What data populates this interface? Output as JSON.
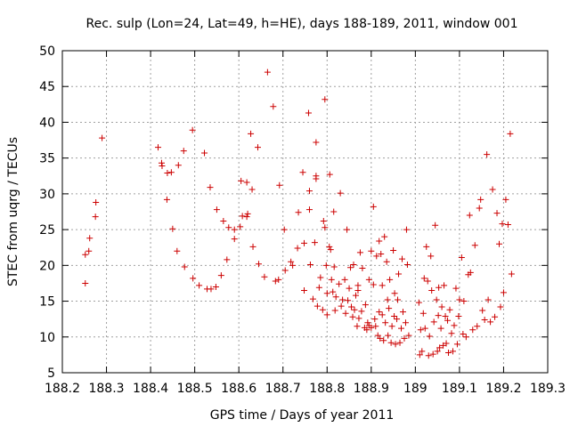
{
  "chart_data": {
    "type": "scatter",
    "title": "Rec. sulp (Lon=24, Lat=49, h=HE), days 188-189, 2011, window 001",
    "xlabel": "GPS time / Days of year 2011",
    "ylabel": "STEC from uqrg / TECUs",
    "xlim": [
      188.2,
      189.3
    ],
    "ylim": [
      5,
      50
    ],
    "xticks": [
      "188.2",
      "188.3",
      "188.4",
      "188.5",
      "188.6",
      "188.7",
      "188.8",
      "188.9",
      "189",
      "189.1",
      "189.2",
      "189.3"
    ],
    "yticks": [
      "5",
      "10",
      "15",
      "20",
      "25",
      "30",
      "35",
      "40",
      "45",
      "50"
    ],
    "grid": true,
    "marker": "+",
    "color": "#cc0000",
    "series": [
      {
        "points": [
          [
            188.252,
            17.5
          ],
          [
            188.252,
            21.5
          ],
          [
            188.26,
            22.0
          ],
          [
            188.262,
            23.8
          ],
          [
            188.275,
            26.8
          ],
          [
            188.276,
            28.8
          ],
          [
            188.29,
            37.8
          ],
          [
            188.417,
            36.5
          ],
          [
            188.425,
            34.3
          ],
          [
            188.426,
            33.9
          ],
          [
            188.437,
            29.2
          ],
          [
            188.438,
            32.9
          ],
          [
            188.447,
            33.0
          ],
          [
            188.45,
            25.1
          ],
          [
            188.46,
            22.0
          ],
          [
            188.463,
            34.0
          ],
          [
            188.475,
            36.0
          ],
          [
            188.477,
            19.8
          ],
          [
            188.495,
            38.9
          ],
          [
            188.496,
            18.2
          ],
          [
            188.51,
            17.2
          ],
          [
            188.522,
            35.7
          ],
          [
            188.528,
            16.7
          ],
          [
            188.535,
            30.9
          ],
          [
            188.537,
            16.7
          ],
          [
            188.548,
            17.0
          ],
          [
            188.55,
            27.8
          ],
          [
            188.56,
            18.6
          ],
          [
            188.565,
            26.2
          ],
          [
            188.573,
            20.8
          ],
          [
            188.577,
            25.3
          ],
          [
            188.59,
            23.7
          ],
          [
            188.59,
            25.0
          ],
          [
            188.603,
            25.4
          ],
          [
            188.605,
            31.8
          ],
          [
            188.608,
            26.9
          ],
          [
            188.618,
            26.8
          ],
          [
            188.618,
            31.6
          ],
          [
            188.62,
            27.2
          ],
          [
            188.627,
            38.4
          ],
          [
            188.63,
            30.6
          ],
          [
            188.632,
            22.6
          ],
          [
            188.643,
            36.5
          ],
          [
            188.645,
            20.2
          ],
          [
            188.658,
            18.4
          ],
          [
            188.665,
            47.0
          ],
          [
            188.678,
            42.2
          ],
          [
            188.683,
            17.8
          ],
          [
            188.692,
            31.2
          ],
          [
            188.69,
            18.0
          ],
          [
            188.703,
            25.0
          ],
          [
            188.705,
            19.3
          ],
          [
            188.718,
            20.5
          ],
          [
            188.722,
            20.0
          ],
          [
            188.735,
            27.4
          ],
          [
            188.733,
            22.4
          ],
          [
            188.745,
            33.0
          ],
          [
            188.748,
            16.5
          ],
          [
            188.748,
            23.1
          ],
          [
            188.758,
            41.3
          ],
          [
            188.76,
            27.8
          ],
          [
            188.76,
            30.4
          ],
          [
            188.762,
            20.1
          ],
          [
            188.768,
            15.3
          ],
          [
            188.772,
            23.2
          ],
          [
            188.775,
            32.5
          ],
          [
            188.775,
            32.1
          ],
          [
            188.775,
            37.2
          ],
          [
            188.778,
            14.3
          ],
          [
            188.782,
            16.9
          ],
          [
            188.785,
            18.3
          ],
          [
            188.79,
            13.8
          ],
          [
            188.792,
            26.2
          ],
          [
            188.795,
            25.3
          ],
          [
            188.795,
            43.2
          ],
          [
            188.798,
            20.0
          ],
          [
            188.8,
            13.1
          ],
          [
            188.8,
            16.1
          ],
          [
            188.805,
            22.6
          ],
          [
            188.806,
            32.7
          ],
          [
            188.808,
            22.2
          ],
          [
            188.81,
            18.0
          ],
          [
            188.813,
            16.3
          ],
          [
            188.816,
            19.8
          ],
          [
            188.815,
            27.5
          ],
          [
            188.818,
            13.7
          ],
          [
            188.82,
            15.6
          ],
          [
            188.827,
            17.4
          ],
          [
            188.83,
            30.1
          ],
          [
            188.832,
            14.3
          ],
          [
            188.835,
            15.2
          ],
          [
            188.84,
            18.0
          ],
          [
            188.842,
            13.3
          ],
          [
            188.845,
            25.0
          ],
          [
            188.847,
            15.1
          ],
          [
            188.85,
            16.8
          ],
          [
            188.853,
            19.7
          ],
          [
            188.855,
            14.2
          ],
          [
            188.858,
            12.8
          ],
          [
            188.86,
            20.1
          ],
          [
            188.862,
            13.8
          ],
          [
            188.865,
            15.8
          ],
          [
            188.868,
            11.5
          ],
          [
            188.87,
            17.2
          ],
          [
            188.87,
            16.5
          ],
          [
            188.872,
            12.6
          ],
          [
            188.875,
            21.8
          ],
          [
            188.878,
            13.6
          ],
          [
            188.88,
            19.6
          ],
          [
            188.885,
            11.3
          ],
          [
            188.887,
            14.5
          ],
          [
            188.89,
            11.0
          ],
          [
            188.892,
            12.0
          ],
          [
            188.895,
            18.0
          ],
          [
            188.895,
            11.6
          ],
          [
            188.9,
            11.3
          ],
          [
            188.9,
            22.0
          ],
          [
            188.905,
            28.2
          ],
          [
            188.905,
            17.3
          ],
          [
            188.908,
            12.5
          ],
          [
            188.91,
            11.5
          ],
          [
            188.912,
            21.3
          ],
          [
            188.915,
            10.2
          ],
          [
            188.918,
            23.4
          ],
          [
            188.918,
            13.5
          ],
          [
            188.92,
            9.8
          ],
          [
            188.922,
            21.6
          ],
          [
            188.925,
            13.1
          ],
          [
            188.925,
            17.2
          ],
          [
            188.928,
            9.5
          ],
          [
            188.93,
            24.0
          ],
          [
            188.932,
            12.0
          ],
          [
            188.935,
            20.5
          ],
          [
            188.937,
            15.2
          ],
          [
            188.938,
            10.2
          ],
          [
            188.94,
            14.0
          ],
          [
            188.942,
            18.0
          ],
          [
            188.945,
            9.2
          ],
          [
            188.947,
            11.5
          ],
          [
            188.95,
            22.1
          ],
          [
            188.952,
            12.9
          ],
          [
            188.953,
            16.1
          ],
          [
            188.955,
            9.0
          ],
          [
            188.958,
            12.5
          ],
          [
            188.96,
            15.2
          ],
          [
            188.962,
            18.8
          ],
          [
            188.965,
            9.2
          ],
          [
            188.968,
            11.2
          ],
          [
            188.97,
            20.9
          ],
          [
            188.972,
            13.5
          ],
          [
            188.975,
            9.8
          ],
          [
            188.978,
            12.0
          ],
          [
            188.98,
            25.0
          ],
          [
            188.982,
            20.1
          ],
          [
            188.985,
            10.2
          ],
          [
            189.008,
            14.8
          ],
          [
            189.01,
            7.5
          ],
          [
            189.012,
            11.0
          ],
          [
            189.015,
            8.0
          ],
          [
            189.018,
            13.3
          ],
          [
            189.02,
            18.2
          ],
          [
            189.022,
            11.2
          ],
          [
            189.025,
            22.6
          ],
          [
            189.028,
            17.8
          ],
          [
            189.03,
            7.4
          ],
          [
            189.032,
            10.1
          ],
          [
            189.035,
            21.3
          ],
          [
            189.037,
            16.5
          ],
          [
            189.04,
            7.6
          ],
          [
            189.042,
            12.1
          ],
          [
            189.045,
            25.6
          ],
          [
            189.048,
            15.2
          ],
          [
            189.05,
            8.0
          ],
          [
            189.052,
            13.0
          ],
          [
            189.053,
            16.9
          ],
          [
            189.055,
            8.5
          ],
          [
            189.058,
            11.2
          ],
          [
            189.06,
            14.2
          ],
          [
            189.063,
            8.8
          ],
          [
            189.065,
            17.2
          ],
          [
            189.068,
            12.9
          ],
          [
            189.07,
            9.1
          ],
          [
            189.073,
            12.3
          ],
          [
            189.075,
            7.8
          ],
          [
            189.078,
            13.8
          ],
          [
            189.082,
            10.5
          ],
          [
            189.085,
            8.0
          ],
          [
            189.088,
            11.6
          ],
          [
            189.092,
            16.8
          ],
          [
            189.095,
            9.0
          ],
          [
            189.098,
            12.9
          ],
          [
            189.1,
            15.2
          ],
          [
            189.105,
            21.1
          ],
          [
            189.108,
            10.4
          ],
          [
            189.11,
            15.0
          ],
          [
            189.115,
            10.0
          ],
          [
            189.12,
            18.7
          ],
          [
            189.123,
            27.0
          ],
          [
            189.125,
            19.0
          ],
          [
            189.13,
            11.0
          ],
          [
            189.135,
            22.8
          ],
          [
            189.14,
            11.5
          ],
          [
            189.145,
            28.0
          ],
          [
            189.148,
            29.2
          ],
          [
            189.152,
            13.7
          ],
          [
            189.157,
            12.4
          ],
          [
            189.162,
            35.5
          ],
          [
            189.165,
            15.2
          ],
          [
            189.17,
            12.1
          ],
          [
            189.175,
            30.6
          ],
          [
            189.18,
            12.8
          ],
          [
            189.185,
            27.3
          ],
          [
            189.19,
            23.0
          ],
          [
            189.193,
            14.2
          ],
          [
            189.197,
            25.8
          ],
          [
            189.2,
            16.2
          ],
          [
            189.205,
            29.2
          ],
          [
            189.21,
            25.7
          ],
          [
            189.215,
            38.4
          ],
          [
            189.218,
            18.8
          ]
        ]
      }
    ]
  }
}
